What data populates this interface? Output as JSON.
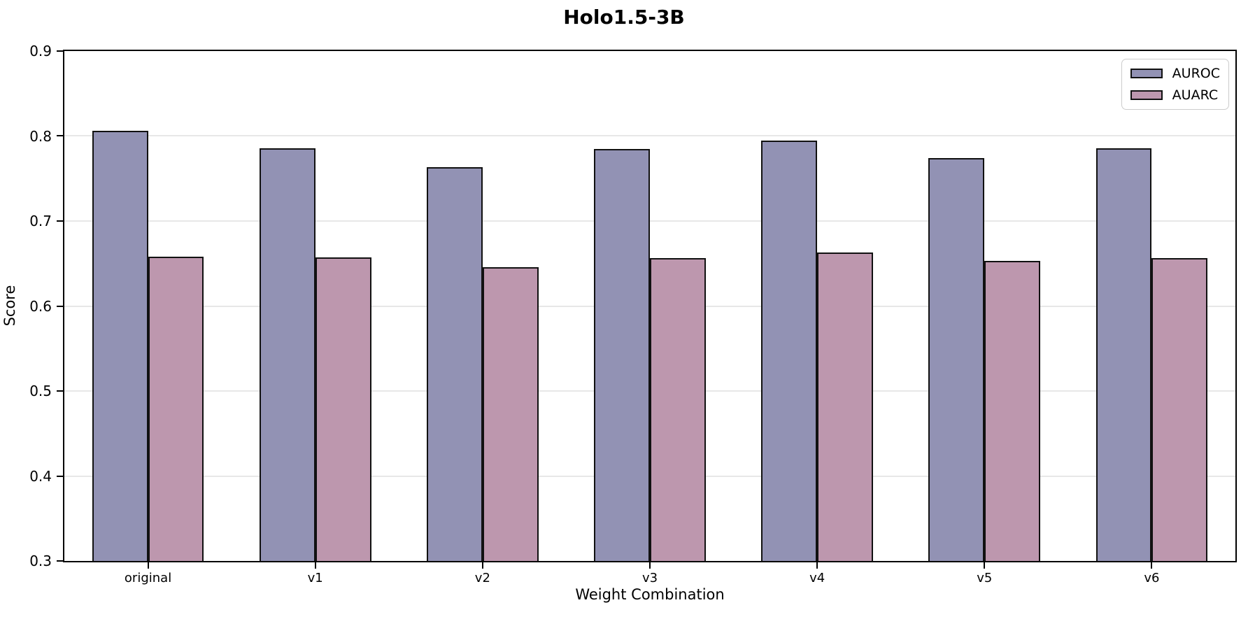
{
  "chart_data": {
    "type": "bar",
    "title": "Holo1.5-3B",
    "xlabel": "Weight Combination",
    "ylabel": "Score",
    "ylim": [
      0.3,
      0.9
    ],
    "yticks": [
      "0.3",
      "0.4",
      "0.5",
      "0.6",
      "0.7",
      "0.8",
      "0.9"
    ],
    "grid": true,
    "grid_color": "#e7e7e7",
    "bar_edge_color": "#111111",
    "legend_position": "upper right",
    "categories": [
      "original",
      "v1",
      "v2",
      "v3",
      "v4",
      "v5",
      "v6"
    ],
    "series": [
      {
        "name": "AUROC",
        "color": "#9292b4",
        "values": [
          0.806,
          0.786,
          0.763,
          0.785,
          0.795,
          0.774,
          0.786
        ]
      },
      {
        "name": "AUARC",
        "color": "#bd97ae",
        "values": [
          0.658,
          0.657,
          0.646,
          0.656,
          0.663,
          0.653,
          0.656
        ]
      }
    ]
  }
}
